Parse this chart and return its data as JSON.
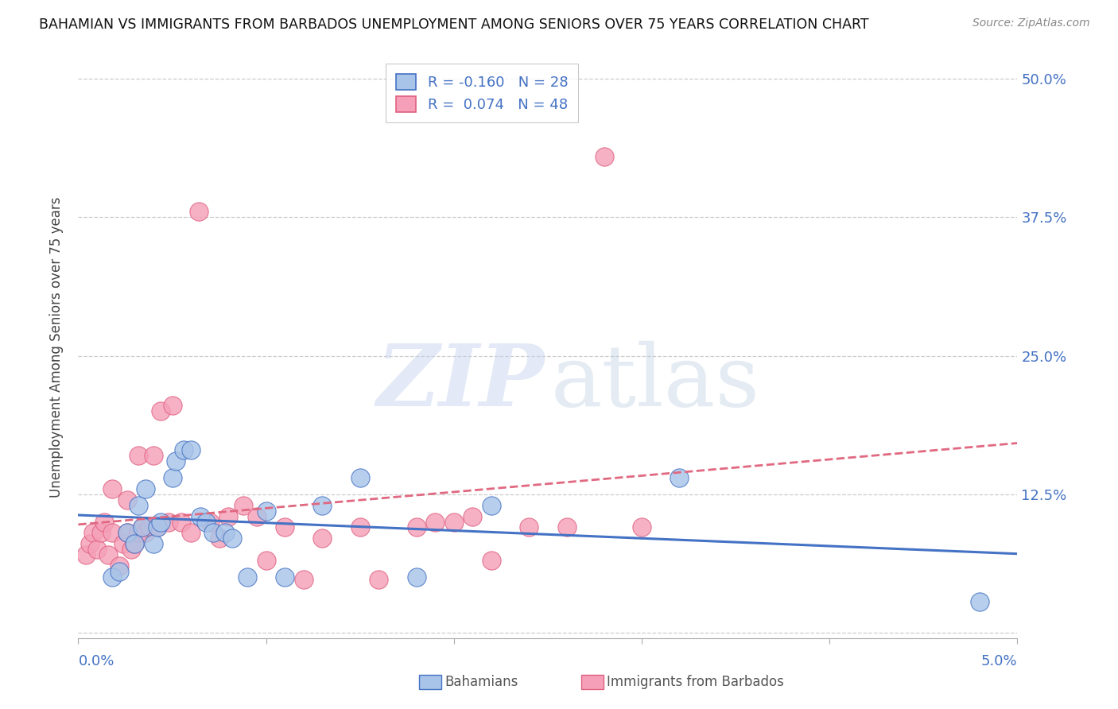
{
  "title": "BAHAMIAN VS IMMIGRANTS FROM BARBADOS UNEMPLOYMENT AMONG SENIORS OVER 75 YEARS CORRELATION CHART",
  "source": "Source: ZipAtlas.com",
  "ylabel": "Unemployment Among Seniors over 75 years",
  "ytick_vals": [
    0.0,
    0.125,
    0.25,
    0.375,
    0.5
  ],
  "ytick_labels": [
    "",
    "12.5%",
    "25.0%",
    "37.5%",
    "50.0%"
  ],
  "xtick_vals": [
    0.0,
    0.01,
    0.02,
    0.03,
    0.04,
    0.05
  ],
  "xlim": [
    0.0,
    0.05
  ],
  "ylim": [
    -0.005,
    0.52
  ],
  "legend_blue_r": "-0.160",
  "legend_blue_n": "28",
  "legend_pink_r": "0.074",
  "legend_pink_n": "48",
  "blue_fill": "#a8c4e8",
  "pink_fill": "#f5a0b8",
  "blue_edge": "#4472c4",
  "pink_edge": "#e06080",
  "blue_line_color": "#4472c4",
  "pink_line_color": "#e06880",
  "blue_x": [
    0.0018,
    0.0022,
    0.0026,
    0.003,
    0.0032,
    0.0034,
    0.0036,
    0.004,
    0.0042,
    0.0044,
    0.005,
    0.0052,
    0.0056,
    0.006,
    0.0065,
    0.0068,
    0.0072,
    0.0078,
    0.0082,
    0.009,
    0.01,
    0.011,
    0.013,
    0.015,
    0.018,
    0.022,
    0.032,
    0.048
  ],
  "blue_y": [
    0.05,
    0.055,
    0.09,
    0.08,
    0.115,
    0.095,
    0.13,
    0.08,
    0.095,
    0.1,
    0.14,
    0.155,
    0.165,
    0.165,
    0.105,
    0.1,
    0.09,
    0.09,
    0.085,
    0.05,
    0.11,
    0.05,
    0.115,
    0.14,
    0.05,
    0.115,
    0.14,
    0.028
  ],
  "pink_x": [
    0.0004,
    0.0006,
    0.0008,
    0.001,
    0.0012,
    0.0014,
    0.0016,
    0.0018,
    0.0018,
    0.0022,
    0.0024,
    0.0026,
    0.0026,
    0.0028,
    0.003,
    0.0032,
    0.0032,
    0.0034,
    0.0036,
    0.0038,
    0.004,
    0.0042,
    0.0044,
    0.0048,
    0.005,
    0.0055,
    0.006,
    0.0064,
    0.007,
    0.0075,
    0.008,
    0.0088,
    0.0095,
    0.01,
    0.011,
    0.012,
    0.013,
    0.015,
    0.016,
    0.018,
    0.019,
    0.02,
    0.021,
    0.022,
    0.024,
    0.026,
    0.028,
    0.03
  ],
  "pink_y": [
    0.07,
    0.08,
    0.09,
    0.075,
    0.09,
    0.1,
    0.07,
    0.09,
    0.13,
    0.06,
    0.08,
    0.09,
    0.12,
    0.075,
    0.08,
    0.09,
    0.16,
    0.095,
    0.09,
    0.095,
    0.16,
    0.095,
    0.2,
    0.1,
    0.205,
    0.1,
    0.09,
    0.38,
    0.1,
    0.085,
    0.105,
    0.115,
    0.105,
    0.065,
    0.095,
    0.048,
    0.085,
    0.095,
    0.048,
    0.095,
    0.1,
    0.1,
    0.105,
    0.065,
    0.095,
    0.095,
    0.43,
    0.095
  ]
}
